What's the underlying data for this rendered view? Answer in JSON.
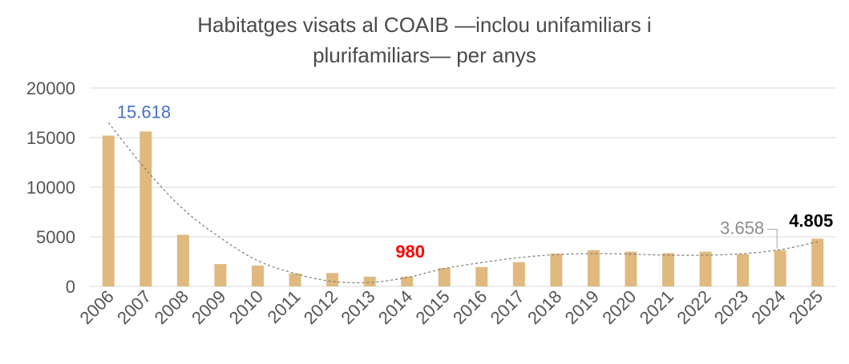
{
  "chart_data": {
    "type": "bar",
    "title_line1": "Habitatges visats al COAIB —inclou unifamiliars i",
    "title_line2": "plurifamiliars— per anys",
    "categories": [
      "2006",
      "2007",
      "2008",
      "2009",
      "2010",
      "2011",
      "2012",
      "2013",
      "2014",
      "2015",
      "2016",
      "2017",
      "2018",
      "2019",
      "2020",
      "2021",
      "2022",
      "2023",
      "2024",
      "2025"
    ],
    "values": [
      15200,
      15618,
      5200,
      2250,
      2100,
      1300,
      1350,
      980,
      980,
      1850,
      1950,
      2450,
      3300,
      3650,
      3500,
      3350,
      3500,
      3250,
      3658,
      4805
    ],
    "trend": [
      16500,
      11800,
      7800,
      4900,
      2600,
      1300,
      500,
      400,
      900,
      1800,
      2400,
      2900,
      3200,
      3300,
      3250,
      3150,
      3150,
      3300,
      3700,
      4500
    ],
    "ylim": [
      0,
      20000
    ],
    "yticks": [
      "0",
      "5000",
      "10000",
      "15000",
      "20000"
    ],
    "grid": true,
    "bar_color": "#e0b97f",
    "trend_color": "#7a7a7a",
    "annotations": [
      {
        "index": 1,
        "label": "15.618",
        "color": "#4472c4"
      },
      {
        "index": 8,
        "label": "980",
        "color": "#ff0000"
      },
      {
        "index": 18,
        "label": "3.658",
        "color": "#8c8c8c"
      },
      {
        "index": 19,
        "label": "4.805",
        "color": "#000000"
      }
    ]
  }
}
